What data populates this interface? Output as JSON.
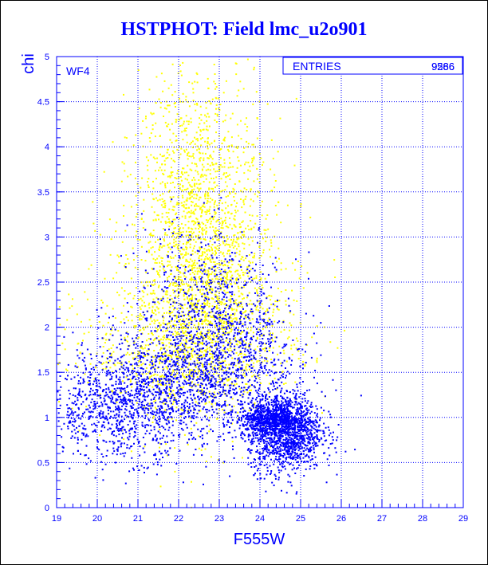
{
  "title": "HSTPHOT: Field lmc_u2o901",
  "colors": {
    "primary": "#0000ff",
    "secondary": "#ffff00"
  },
  "chart_data": {
    "type": "scatter",
    "title": "HSTPHOT: Field lmc_u2o901",
    "xlabel": "F555W",
    "ylabel": "chi",
    "xlim": [
      19,
      29
    ],
    "ylim": [
      0,
      5
    ],
    "grid": true,
    "xticks": [
      "19",
      "20",
      "21",
      "22",
      "23",
      "24",
      "25",
      "26",
      "27",
      "28",
      "29"
    ],
    "yticks": [
      "0",
      "0.5",
      "1",
      "1.5",
      "2",
      "2.5",
      "3",
      "3.5",
      "4",
      "4.5",
      "5"
    ],
    "annotations": [
      "WF4"
    ],
    "stats_box": {
      "label": "ENTRIES",
      "values": [
        "9586",
        "9266"
      ],
      "position": "top-right"
    },
    "series": [
      {
        "color": "#ffff00",
        "points": [
          [
            21.4,
            2.2
          ],
          [
            21.8,
            2.6
          ],
          [
            22.0,
            3.1
          ],
          [
            22.3,
            2.0
          ],
          [
            22.5,
            2.8
          ],
          [
            22.7,
            3.4
          ],
          [
            22.9,
            2.4
          ],
          [
            23.1,
            3.0
          ],
          [
            23.3,
            2.2
          ],
          [
            23.5,
            2.7
          ],
          [
            22.2,
            3.8
          ],
          [
            22.6,
            4.2
          ],
          [
            21.6,
            1.9
          ],
          [
            23.8,
            2.1
          ],
          [
            22.8,
            1.8
          ]
        ],
        "clusters": [
          {
            "cx": 22.6,
            "cy": 2.5,
            "sx": 0.9,
            "sy": 0.75,
            "n": 1700
          },
          {
            "cx": 22.4,
            "cy": 3.7,
            "sx": 0.75,
            "sy": 0.7,
            "n": 650
          },
          {
            "cx": 22.5,
            "cy": 1.85,
            "sx": 1.3,
            "sy": 0.35,
            "n": 650
          },
          {
            "cx": 21.2,
            "cy": 1.6,
            "sx": 1.3,
            "sy": 0.4,
            "n": 200
          }
        ]
      },
      {
        "color": "#0000ff",
        "points": [
          [
            19.5,
            1.2
          ],
          [
            20.2,
            1.0
          ],
          [
            21.0,
            1.3
          ],
          [
            22.0,
            1.5
          ],
          [
            23.0,
            1.4
          ],
          [
            24.0,
            1.0
          ],
          [
            24.5,
            0.8
          ],
          [
            25.0,
            0.6
          ],
          [
            24.3,
            0.95
          ],
          [
            23.5,
            1.8
          ]
        ],
        "clusters": [
          {
            "cx": 24.6,
            "cy": 0.85,
            "sx": 0.45,
            "sy": 0.22,
            "n": 1400
          },
          {
            "cx": 24.2,
            "cy": 1.0,
            "sx": 0.4,
            "sy": 0.08,
            "n": 500
          },
          {
            "cx": 20.5,
            "cy": 1.1,
            "sx": 0.9,
            "sy": 0.28,
            "n": 850
          },
          {
            "cx": 22.5,
            "cy": 1.45,
            "sx": 1.2,
            "sy": 0.35,
            "n": 1150
          },
          {
            "cx": 23.3,
            "cy": 2.0,
            "sx": 0.8,
            "sy": 0.4,
            "n": 450
          },
          {
            "cx": 22.3,
            "cy": 2.5,
            "sx": 0.7,
            "sy": 0.4,
            "n": 180
          }
        ]
      }
    ]
  }
}
